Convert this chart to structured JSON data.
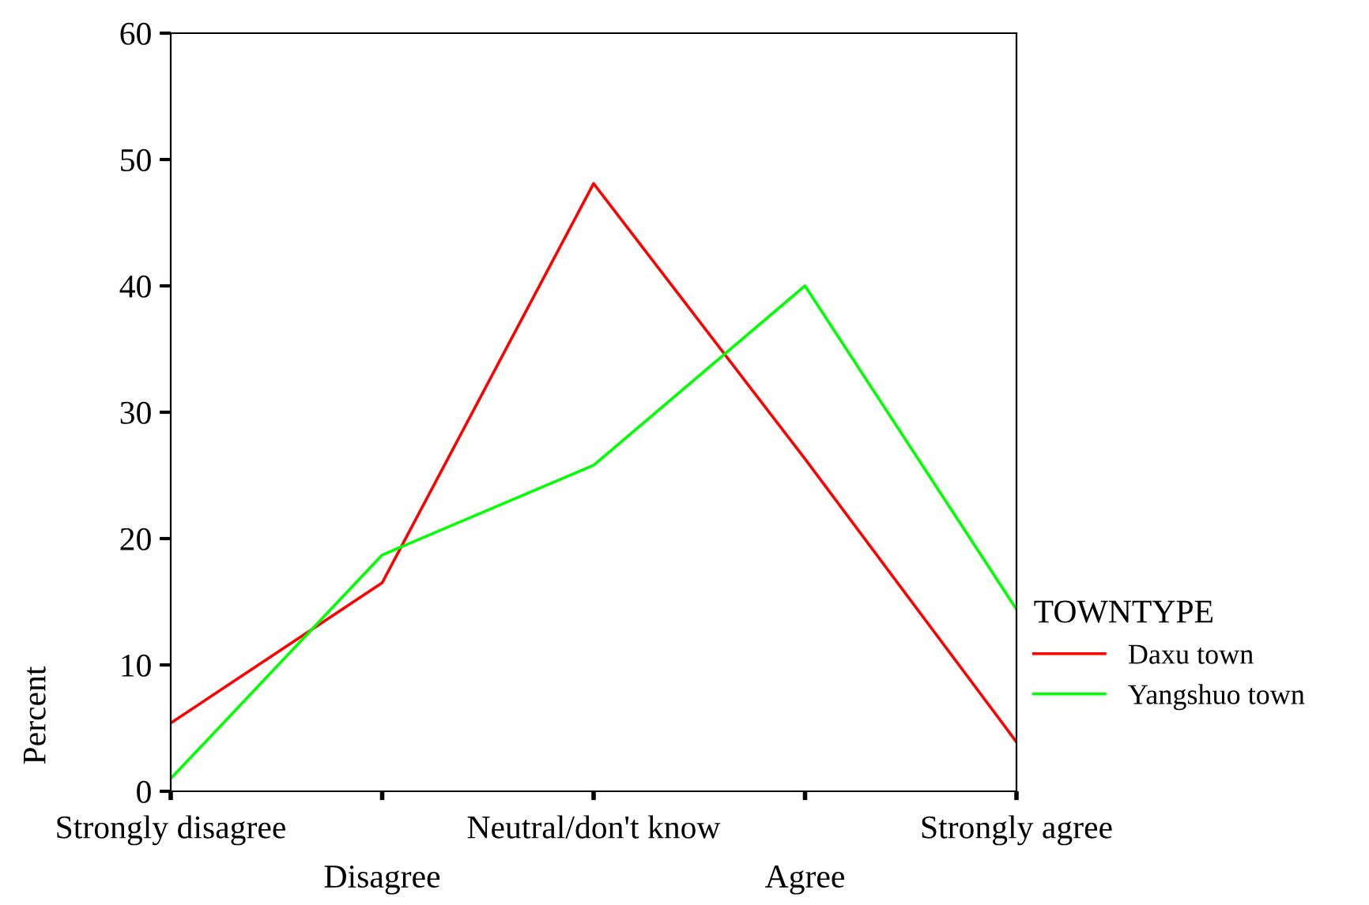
{
  "chart_data": {
    "type": "line",
    "ylabel": "Percent",
    "legend_title": "TOWNTYPE",
    "categories": [
      "Strongly disagree",
      "Disagree",
      "Neutral/don't know",
      "Agree",
      "Strongly agree"
    ],
    "series": [
      {
        "name": "Daxu town",
        "color": "#ff0000",
        "values": [
          5.4,
          16.5,
          48.1,
          26.3,
          3.9
        ]
      },
      {
        "name": "Yangshuo town",
        "color": "#00ff00",
        "values": [
          1.0,
          18.7,
          25.8,
          40.0,
          14.4
        ]
      }
    ],
    "ylim": [
      0,
      60
    ],
    "yticks": [
      0,
      10,
      20,
      30,
      40,
      50,
      60
    ],
    "grid": false,
    "legend": "right",
    "marker": "none",
    "line_style": "solid"
  }
}
